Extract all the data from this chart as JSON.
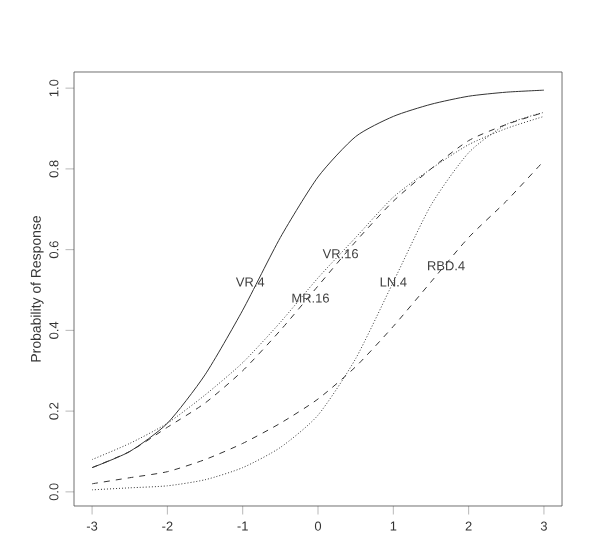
{
  "chart_data": {
    "type": "line",
    "ylabel": "Probability of Response",
    "x": [
      -3,
      -2.5,
      -2,
      -1.5,
      -1,
      -0.5,
      0,
      0.5,
      1,
      1.5,
      2,
      2.5,
      3
    ],
    "series": [
      {
        "color": "#333333",
        "line_style": "solid",
        "values": [
          0.06,
          0.1,
          0.17,
          0.29,
          0.45,
          0.63,
          0.78,
          0.88,
          0.93,
          0.96,
          0.98,
          0.99,
          0.995
        ]
      },
      {
        "color": "#333333",
        "line_style": "dotted",
        "values": [
          0.08,
          0.12,
          0.17,
          0.24,
          0.32,
          0.42,
          0.53,
          0.63,
          0.73,
          0.8,
          0.86,
          0.9,
          0.93
        ]
      },
      {
        "color": "#333333",
        "line_style": "dashed",
        "values": [
          0.06,
          0.1,
          0.16,
          0.22,
          0.3,
          0.4,
          0.51,
          0.62,
          0.72,
          0.8,
          0.87,
          0.91,
          0.94
        ]
      },
      {
        "color": "#333333",
        "line_style": "dashed",
        "values": [
          0.02,
          0.035,
          0.05,
          0.08,
          0.12,
          0.17,
          0.23,
          0.31,
          0.41,
          0.52,
          0.63,
          0.72,
          0.82
        ]
      },
      {
        "color": "#333333",
        "line_style": "dotted",
        "values": [
          0.005,
          0.01,
          0.015,
          0.03,
          0.06,
          0.11,
          0.19,
          0.33,
          0.52,
          0.71,
          0.84,
          0.91,
          0.94
        ]
      }
    ],
    "annotations": [
      {
        "text": "VR.4",
        "x": -0.9,
        "y": 0.52
      },
      {
        "text": "VR.16",
        "x": 0.3,
        "y": 0.59
      },
      {
        "text": "MR.16",
        "x": -0.1,
        "y": 0.48
      },
      {
        "text": "LN.4",
        "x": 1.0,
        "y": 0.52
      },
      {
        "text": "RBD.4",
        "x": 1.7,
        "y": 0.56
      }
    ],
    "xlim": [
      -3.24,
      3.24
    ],
    "ylim": [
      -0.035,
      1.04
    ],
    "xticks": [
      -3,
      -2,
      -1,
      0,
      1,
      2,
      3
    ],
    "yticks": [
      {
        "value": 0,
        "label": "0.0"
      },
      {
        "value": 0.2,
        "label": "0.2"
      },
      {
        "value": 0.4,
        "label": "0.4"
      },
      {
        "value": 0.6,
        "label": "0.6"
      },
      {
        "value": 0.8,
        "label": "0.8"
      },
      {
        "value": 1,
        "label": "1.0"
      }
    ],
    "grid": false
  }
}
